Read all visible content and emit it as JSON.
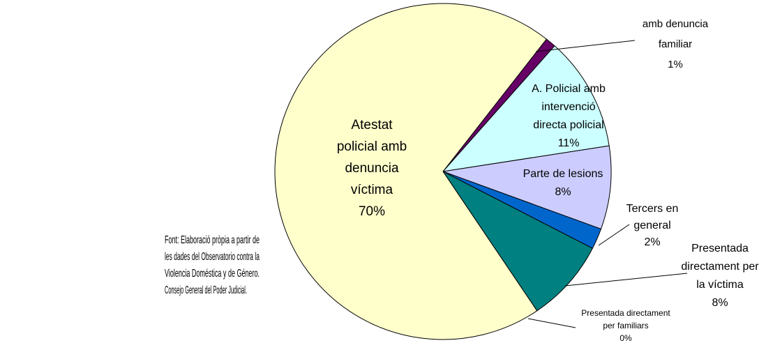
{
  "chart_data": {
    "type": "pie",
    "categories": [
      [
        "amb denuncia",
        "familiar"
      ],
      [
        "A. Policial amb",
        "intervenció",
        "directa policial"
      ],
      [
        "Parte de lesions"
      ],
      [
        "Tercers en",
        "general"
      ],
      [
        "Presentada",
        "directament per",
        "la víctima"
      ],
      [
        "Presentada directament",
        "per familiars"
      ],
      [
        "Atestat",
        "policial amb",
        "denuncia",
        "víctima"
      ]
    ],
    "values": [
      1,
      11,
      8,
      2,
      8,
      0,
      70
    ],
    "value_labels": [
      "1%",
      "11%",
      "8%",
      "2%",
      "8%",
      "0%",
      "70%"
    ],
    "colors": [
      "#660066",
      "#ccffff",
      "#ccccff",
      "#0066cc",
      "#008080",
      "#ffffcc",
      "#ffffcc"
    ],
    "source": [
      "Font: Elaboració pròpia a partir de",
      "les dades del Observatorio contra la",
      "Violencia Doméstica y de Género.",
      "Consejo General del Poder Judicial."
    ]
  }
}
